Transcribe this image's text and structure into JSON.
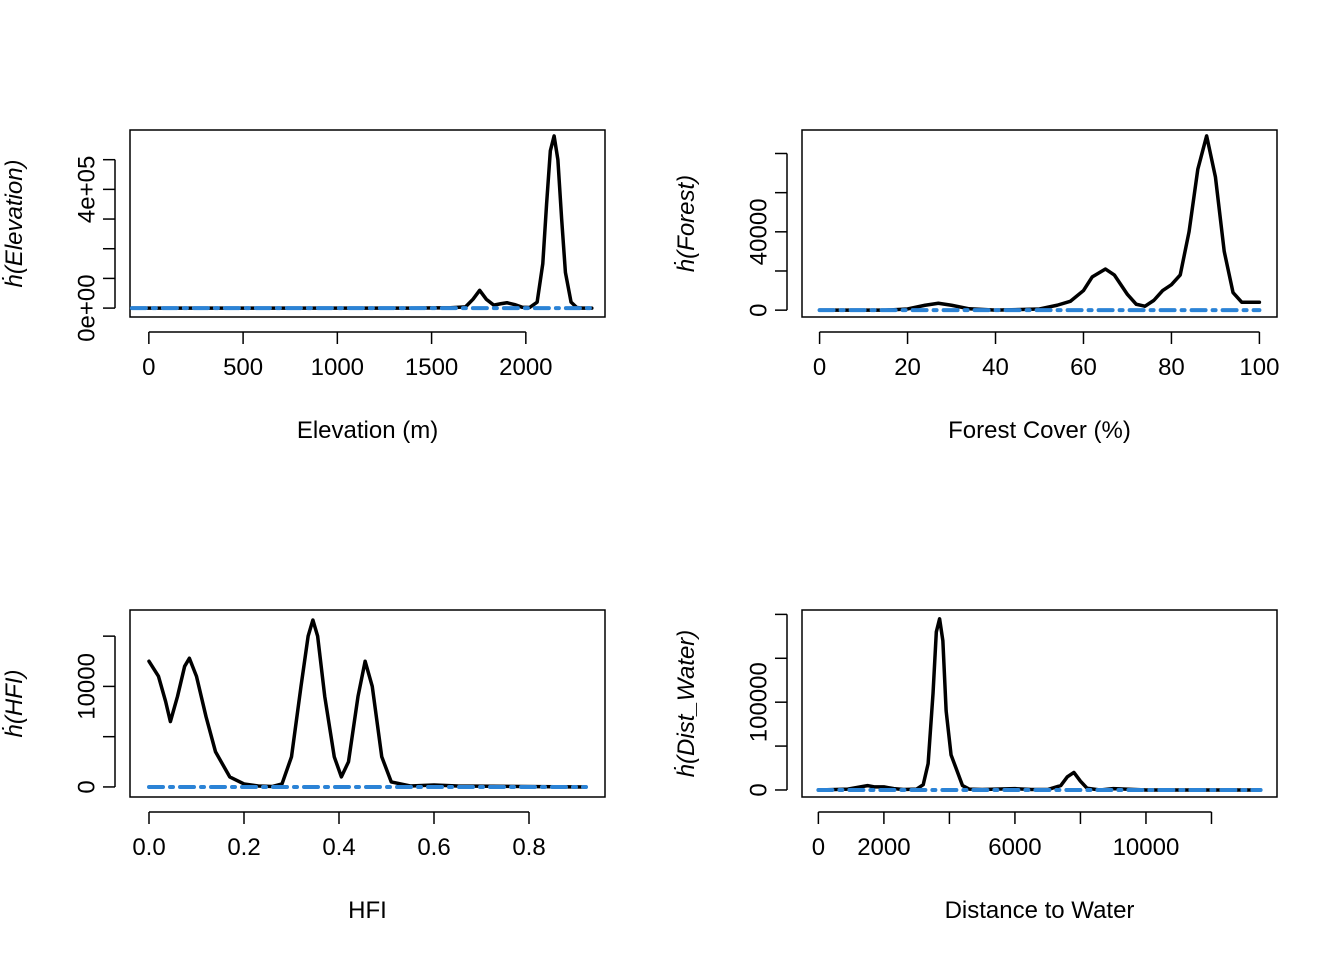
{
  "chart_data": [
    {
      "type": "line",
      "xlabel": "Elevation (m)",
      "ylabel": "ḣ(Elevation)",
      "xlim": [
        -100,
        2420
      ],
      "ylim": [
        -30000,
        600000
      ],
      "xticks": [
        0,
        500,
        1000,
        1500,
        2000
      ],
      "xtick_labels": [
        "0",
        "500",
        "1000",
        "1500",
        "2000"
      ],
      "yticks": [
        0,
        100000,
        200000,
        300000,
        400000,
        500000
      ],
      "ytick_labels": [
        "0e+00",
        "",
        "",
        "",
        "4e+05",
        ""
      ],
      "grid": false,
      "series": [
        {
          "color": "#000000",
          "style": "solid",
          "x": [
            -90,
            1400,
            1600,
            1680,
            1720,
            1755,
            1790,
            1830,
            1870,
            1900,
            1940,
            1980,
            2020,
            2060,
            2090,
            2110,
            2130,
            2150,
            2170,
            2190,
            2210,
            2240,
            2270,
            2300,
            2350
          ],
          "y": [
            0,
            0,
            1000,
            4000,
            30000,
            60000,
            30000,
            10000,
            15000,
            18000,
            12000,
            3000,
            2000,
            20000,
            150000,
            350000,
            530000,
            580000,
            500000,
            300000,
            120000,
            20000,
            2000,
            0,
            0
          ]
        },
        {
          "color": "#2b83d6",
          "style": "dashdot",
          "x": [
            -90,
            2350
          ],
          "y": [
            0,
            0
          ]
        }
      ]
    },
    {
      "type": "line",
      "xlabel": "Forest Cover (%)",
      "ylabel": "ḣ(Forest)",
      "xlim": [
        -4,
        104
      ],
      "ylim": [
        -3500,
        92000
      ],
      "xticks": [
        0,
        20,
        40,
        60,
        80,
        100
      ],
      "xtick_labels": [
        "0",
        "20",
        "40",
        "60",
        "80",
        "100"
      ],
      "yticks": [
        0,
        20000,
        40000,
        60000,
        80000
      ],
      "ytick_labels": [
        "0",
        "",
        "40000",
        "",
        ""
      ],
      "grid": false,
      "series": [
        {
          "color": "#000000",
          "style": "solid",
          "x": [
            0,
            15,
            20,
            24,
            27,
            30,
            34,
            40,
            50,
            54,
            57,
            60,
            62,
            65,
            67,
            70,
            72,
            74,
            76,
            78,
            80,
            82,
            84,
            86,
            88,
            90,
            92,
            94,
            96,
            100
          ],
          "y": [
            0,
            0,
            600,
            2500,
            3500,
            2500,
            700,
            0,
            600,
            2500,
            4500,
            10000,
            17000,
            21000,
            18000,
            8000,
            3000,
            2000,
            5000,
            10000,
            13000,
            18000,
            40000,
            72000,
            89000,
            68000,
            30000,
            9000,
            4000,
            4000
          ]
        },
        {
          "color": "#2b83d6",
          "style": "dashdot",
          "x": [
            0,
            100
          ],
          "y": [
            0,
            0
          ]
        }
      ]
    },
    {
      "type": "line",
      "xlabel": "HFI",
      "ylabel": "ḣ(HFI)",
      "xlim": [
        -0.04,
        0.96
      ],
      "ylim": [
        -1000,
        17600
      ],
      "xticks": [
        0.0,
        0.2,
        0.4,
        0.6,
        0.8
      ],
      "xtick_labels": [
        "0.0",
        "0.2",
        "0.4",
        "0.6",
        "0.8"
      ],
      "yticks": [
        0,
        5000,
        10000,
        15000
      ],
      "ytick_labels": [
        "0",
        "",
        "10000",
        ""
      ],
      "grid": false,
      "series": [
        {
          "color": "#000000",
          "style": "solid",
          "x": [
            0.0,
            0.02,
            0.035,
            0.045,
            0.06,
            0.075,
            0.085,
            0.1,
            0.12,
            0.14,
            0.17,
            0.2,
            0.23,
            0.26,
            0.28,
            0.3,
            0.32,
            0.335,
            0.345,
            0.355,
            0.37,
            0.39,
            0.405,
            0.42,
            0.44,
            0.455,
            0.47,
            0.49,
            0.51,
            0.55,
            0.6,
            0.65,
            0.92
          ],
          "y": [
            12500,
            11000,
            8500,
            6500,
            9000,
            12000,
            12800,
            11000,
            7000,
            3500,
            1000,
            300,
            100,
            50,
            300,
            3000,
            10000,
            15000,
            16600,
            15000,
            9000,
            3000,
            1000,
            2500,
            9000,
            12500,
            10000,
            3000,
            500,
            100,
            200,
            100,
            0
          ]
        },
        {
          "color": "#2b83d6",
          "style": "dashdot",
          "x": [
            0.0,
            0.92
          ],
          "y": [
            0,
            0
          ]
        }
      ]
    },
    {
      "type": "line",
      "xlabel": "Distance to Water",
      "ylabel": "ḣ(Dist_Water)",
      "xlim": [
        -500,
        14000
      ],
      "ylim": [
        -8000,
        205000
      ],
      "xticks": [
        0,
        2000,
        4000,
        6000,
        8000,
        10000,
        12000
      ],
      "xtick_labels": [
        "0",
        "2000",
        "",
        "6000",
        "",
        "10000",
        ""
      ],
      "yticks": [
        0,
        50000,
        100000,
        150000,
        200000
      ],
      "ytick_labels": [
        "0",
        "",
        "100000",
        "",
        ""
      ],
      "grid": false,
      "series": [
        {
          "color": "#000000",
          "style": "solid",
          "x": [
            0,
            900,
            1200,
            1500,
            1700,
            2000,
            2300,
            2600,
            3000,
            3200,
            3350,
            3500,
            3600,
            3700,
            3800,
            3900,
            4050,
            4200,
            4400,
            4600,
            5000,
            6000,
            6500,
            7000,
            7400,
            7600,
            7800,
            8000,
            8200,
            8600,
            9000,
            10000,
            13500
          ],
          "y": [
            0,
            1000,
            3000,
            5000,
            3500,
            3500,
            1500,
            500,
            1000,
            6000,
            30000,
            110000,
            180000,
            195000,
            170000,
            90000,
            40000,
            25000,
            5000,
            1000,
            500,
            1500,
            500,
            500,
            5000,
            15000,
            20000,
            10000,
            2000,
            0,
            1500,
            0,
            0
          ]
        },
        {
          "color": "#2b83d6",
          "style": "dashdot",
          "x": [
            0,
            13500
          ],
          "y": [
            0,
            0
          ]
        }
      ]
    }
  ]
}
